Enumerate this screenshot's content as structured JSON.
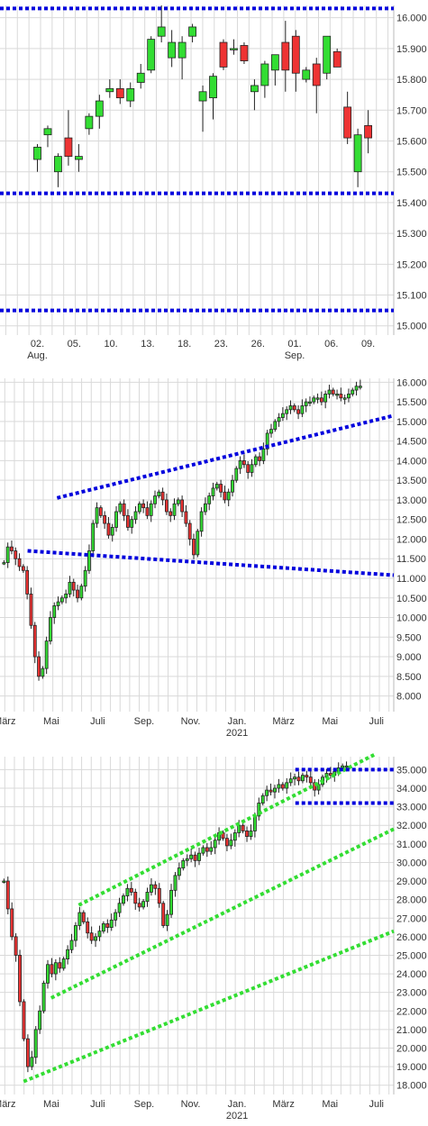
{
  "chart_data": [
    {
      "type": "candlestick",
      "xaxis_labels": [
        {
          "label": "02.",
          "sublabel": "Aug."
        },
        {
          "label": "05.",
          "sublabel": ""
        },
        {
          "label": "10.",
          "sublabel": ""
        },
        {
          "label": "13.",
          "sublabel": ""
        },
        {
          "label": "18.",
          "sublabel": ""
        },
        {
          "label": "23.",
          "sublabel": ""
        },
        {
          "label": "26.",
          "sublabel": ""
        },
        {
          "label": "01.",
          "sublabel": "Sep."
        },
        {
          "label": "06.",
          "sublabel": ""
        },
        {
          "label": "09.",
          "sublabel": ""
        }
      ],
      "y_ticks": [
        "16.000",
        "15.900",
        "15.800",
        "15.700",
        "15.600",
        "15.500",
        "15.400",
        "15.300",
        "15.200",
        "15.100",
        "15.000"
      ],
      "ylim": [
        14970,
        16040
      ],
      "candles": [
        {
          "o": 15540,
          "h": 15590,
          "l": 15500,
          "c": 15580
        },
        {
          "o": 15620,
          "h": 15650,
          "l": 15580,
          "c": 15640
        },
        {
          "o": 15500,
          "h": 15560,
          "l": 15450,
          "c": 15550
        },
        {
          "o": 15610,
          "h": 15700,
          "l": 15520,
          "c": 15550
        },
        {
          "o": 15540,
          "h": 15590,
          "l": 15500,
          "c": 15550
        },
        {
          "o": 15640,
          "h": 15690,
          "l": 15620,
          "c": 15680
        },
        {
          "o": 15680,
          "h": 15750,
          "l": 15640,
          "c": 15730
        },
        {
          "o": 15760,
          "h": 15800,
          "l": 15740,
          "c": 15770
        },
        {
          "o": 15770,
          "h": 15800,
          "l": 15720,
          "c": 15740
        },
        {
          "o": 15730,
          "h": 15790,
          "l": 15710,
          "c": 15770
        },
        {
          "o": 15790,
          "h": 15850,
          "l": 15770,
          "c": 15820
        },
        {
          "o": 15830,
          "h": 15940,
          "l": 15820,
          "c": 15930
        },
        {
          "o": 15940,
          "h": 16040,
          "l": 15920,
          "c": 15970
        },
        {
          "o": 15870,
          "h": 15960,
          "l": 15840,
          "c": 15920
        },
        {
          "o": 15870,
          "h": 15940,
          "l": 15800,
          "c": 15920
        },
        {
          "o": 15940,
          "h": 15980,
          "l": 15920,
          "c": 15970
        },
        {
          "o": 15730,
          "h": 15780,
          "l": 15630,
          "c": 15760
        },
        {
          "o": 15740,
          "h": 15820,
          "l": 15670,
          "c": 15810
        },
        {
          "o": 15920,
          "h": 15930,
          "l": 15830,
          "c": 15840
        },
        {
          "o": 15900,
          "h": 15930,
          "l": 15880,
          "c": 15900
        },
        {
          "o": 15910,
          "h": 15920,
          "l": 15850,
          "c": 15860
        },
        {
          "o": 15760,
          "h": 15800,
          "l": 15700,
          "c": 15780
        },
        {
          "o": 15780,
          "h": 15860,
          "l": 15740,
          "c": 15850
        },
        {
          "o": 15830,
          "h": 15880,
          "l": 15780,
          "c": 15880
        },
        {
          "o": 15920,
          "h": 15990,
          "l": 15760,
          "c": 15830
        },
        {
          "o": 15940,
          "h": 15960,
          "l": 15760,
          "c": 15820
        },
        {
          "o": 15800,
          "h": 15840,
          "l": 15790,
          "c": 15830
        },
        {
          "o": 15850,
          "h": 15870,
          "l": 15690,
          "c": 15780
        },
        {
          "o": 15820,
          "h": 15940,
          "l": 15800,
          "c": 15940
        },
        {
          "o": 15890,
          "h": 15900,
          "l": 15840,
          "c": 15840
        },
        {
          "o": 15710,
          "h": 15760,
          "l": 15590,
          "c": 15610
        },
        {
          "o": 15500,
          "h": 15640,
          "l": 15450,
          "c": 15620
        },
        {
          "o": 15650,
          "h": 15700,
          "l": 15560,
          "c": 15610
        }
      ],
      "level_lines": [
        {
          "y": 16030,
          "color": "#0000dd"
        },
        {
          "y": 15430,
          "color": "#0000dd"
        },
        {
          "y": 15050,
          "color": "#0000dd"
        }
      ],
      "colors": {
        "up": "#33dd33",
        "down": "#ee3333",
        "grid": "#d9d9d9",
        "line": "#0000dd"
      }
    },
    {
      "type": "candlestick",
      "xaxis_labels": [
        {
          "label": "März",
          "sublabel": ""
        },
        {
          "label": "Mai",
          "sublabel": ""
        },
        {
          "label": "Juli",
          "sublabel": ""
        },
        {
          "label": "Sep.",
          "sublabel": ""
        },
        {
          "label": "Nov.",
          "sublabel": ""
        },
        {
          "label": "Jan.",
          "sublabel": "2021"
        },
        {
          "label": "März",
          "sublabel": ""
        },
        {
          "label": "Mai",
          "sublabel": ""
        },
        {
          "label": "Juli",
          "sublabel": ""
        }
      ],
      "y_ticks": [
        "16.000",
        "15.500",
        "15.000",
        "14.500",
        "14.000",
        "13.500",
        "13.000",
        "12.500",
        "12.000",
        "11.500",
        "11.000",
        "10.500",
        "10.000",
        "9.500",
        "9.000",
        "8.500",
        "8.000"
      ],
      "ylim": [
        7600,
        16100
      ],
      "candle_closes": [
        11400,
        11800,
        11700,
        11500,
        11300,
        11200,
        10600,
        9800,
        9000,
        8500,
        8700,
        9400,
        10000,
        10300,
        10400,
        10500,
        10600,
        10900,
        10700,
        10500,
        10800,
        11200,
        11700,
        12400,
        12800,
        12600,
        12400,
        12100,
        12300,
        12700,
        12900,
        12600,
        12300,
        12500,
        12700,
        12900,
        12800,
        12600,
        12900,
        13100,
        13200,
        13000,
        12700,
        12600,
        12900,
        13000,
        12700,
        12400,
        12000,
        11600,
        12200,
        12700,
        12900,
        13100,
        13300,
        13400,
        13200,
        13000,
        13200,
        13500,
        13800,
        14000,
        13900,
        13700,
        13900,
        14100,
        14000,
        14300,
        14700,
        14800,
        15000,
        15100,
        15200,
        15300,
        15400,
        15300,
        15200,
        15400,
        15500,
        15500,
        15600,
        15600,
        15500,
        15700,
        15800,
        15700,
        15700,
        15600,
        15600,
        15700,
        15800,
        15900,
        15900
      ],
      "trend_lines": [
        {
          "from": [
            11400,
            1,
            1
          ],
          "x1": 0.145,
          "y1": 13050,
          "x2": 1.0,
          "y2": 15150,
          "color": "#0000dd"
        },
        {
          "x1": 0.07,
          "y1": 11700,
          "x2": 1.0,
          "y2": 11080,
          "color": "#0000dd"
        }
      ],
      "colors": {
        "up": "#33dd33",
        "down": "#ee3333",
        "grid": "#d9d9d9",
        "line": "#0000dd"
      }
    },
    {
      "type": "candlestick",
      "xaxis_labels": [
        {
          "label": "März",
          "sublabel": ""
        },
        {
          "label": "Mai",
          "sublabel": ""
        },
        {
          "label": "Juli",
          "sublabel": ""
        },
        {
          "label": "Sep.",
          "sublabel": ""
        },
        {
          "label": "Nov.",
          "sublabel": ""
        },
        {
          "label": "Jan.",
          "sublabel": "2021"
        },
        {
          "label": "März",
          "sublabel": ""
        },
        {
          "label": "Mai",
          "sublabel": ""
        },
        {
          "label": "Juli",
          "sublabel": ""
        }
      ],
      "y_ticks": [
        "35.000",
        "34.000",
        "33.000",
        "32.000",
        "31.000",
        "30.000",
        "29.000",
        "28.000",
        "27.000",
        "26.000",
        "25.000",
        "24.000",
        "23.000",
        "22.000",
        "21.000",
        "20.000",
        "19.000",
        "18.000"
      ],
      "ylim": [
        17500,
        35700
      ],
      "candle_closes": [
        29000,
        27500,
        26000,
        25000,
        22500,
        20500,
        19000,
        19500,
        21000,
        22000,
        23500,
        24500,
        24000,
        24600,
        24300,
        24800,
        25300,
        25800,
        26600,
        27300,
        26800,
        26200,
        25800,
        26000,
        26300,
        26700,
        26500,
        26900,
        27300,
        27800,
        28200,
        28600,
        28400,
        27800,
        27600,
        27900,
        28400,
        28800,
        28600,
        27800,
        26600,
        27200,
        28500,
        29300,
        29700,
        30100,
        30200,
        30400,
        30100,
        30500,
        30800,
        30600,
        30800,
        31200,
        31600,
        31300,
        30900,
        31200,
        31600,
        32000,
        31700,
        31400,
        31700,
        32500,
        33200,
        33600,
        33900,
        33800,
        34000,
        34200,
        34000,
        34300,
        34500,
        34600,
        34400,
        34700,
        34600,
        34300,
        33900,
        34200,
        34600,
        34800,
        34700,
        34900,
        35100,
        35200,
        35200
      ],
      "trend_lines": [
        {
          "x1": 0.06,
          "y1": 18200,
          "x2": 1.0,
          "y2": 26300,
          "color": "#33dd33"
        },
        {
          "x1": 0.13,
          "y1": 22700,
          "x2": 1.0,
          "y2": 31800,
          "color": "#33dd33"
        },
        {
          "x1": 0.2,
          "y1": 27700,
          "x2": 0.95,
          "y2": 35800,
          "color": "#33dd33"
        },
        {
          "x1": 0.75,
          "y1": 35000,
          "x2": 1.0,
          "y2": 35000,
          "color": "#0000dd"
        },
        {
          "x1": 0.75,
          "y1": 33200,
          "x2": 1.0,
          "y2": 33200,
          "color": "#0000dd"
        }
      ],
      "colors": {
        "up": "#33dd33",
        "down": "#ee3333",
        "grid": "#d9d9d9",
        "line": "#0000dd"
      }
    }
  ]
}
